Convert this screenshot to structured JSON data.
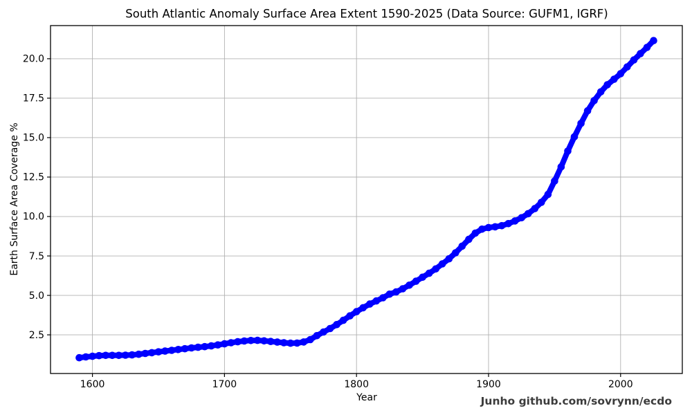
{
  "figure": {
    "title": "South Atlantic Anomaly Surface Area Extent 1590-2025 (Data Source: GUFM1, IGRF)",
    "xlabel": "Year",
    "ylabel": "Earth Surface Area Coverage %",
    "credit": "Junho github.com/sovrynn/ecdo"
  },
  "chart_data": {
    "type": "line",
    "title": "South Atlantic Anomaly Surface Area Extent 1590-2025 (Data Source: GUFM1, IGRF)",
    "xlabel": "Year",
    "ylabel": "Earth Surface Area Coverage %",
    "annotation": "Junho github.com/sovrynn/ecdo",
    "xlim": [
      1568.25,
      2046.75
    ],
    "ylim": [
      0.05,
      22.1
    ],
    "xticks": [
      1600,
      1700,
      1800,
      1900,
      2000
    ],
    "xtick_labels": [
      "1600",
      "1700",
      "1800",
      "1900",
      "2000"
    ],
    "yticks": [
      2.5,
      5.0,
      7.5,
      10.0,
      12.5,
      15.0,
      17.5,
      20.0
    ],
    "ytick_labels": [
      "2.5",
      "5.0",
      "7.5",
      "10.0",
      "12.5",
      "15.0",
      "17.5",
      "20.0"
    ],
    "grid": true,
    "grid_color": "#b0b0b0",
    "line_color": "#0000ff",
    "line_width": 8,
    "marker_radius": 5.3,
    "legend": "none",
    "series": [
      {
        "name": "SAA surface area extent",
        "x": [
          1590,
          1595,
          1600,
          1605,
          1610,
          1615,
          1620,
          1625,
          1630,
          1635,
          1640,
          1645,
          1650,
          1655,
          1660,
          1665,
          1670,
          1675,
          1680,
          1685,
          1690,
          1695,
          1700,
          1705,
          1710,
          1715,
          1720,
          1725,
          1730,
          1735,
          1740,
          1745,
          1750,
          1755,
          1760,
          1765,
          1770,
          1775,
          1780,
          1785,
          1790,
          1795,
          1800,
          1805,
          1810,
          1815,
          1820,
          1825,
          1830,
          1835,
          1840,
          1845,
          1850,
          1855,
          1860,
          1865,
          1870,
          1875,
          1880,
          1885,
          1890,
          1895,
          1900,
          1905,
          1910,
          1915,
          1920,
          1925,
          1930,
          1935,
          1940,
          1945,
          1950,
          1955,
          1960,
          1965,
          1970,
          1975,
          1980,
          1985,
          1990,
          1995,
          2000,
          2005,
          2010,
          2015,
          2020,
          2025
        ],
        "y": [
          1.05,
          1.1,
          1.14,
          1.18,
          1.2,
          1.2,
          1.2,
          1.21,
          1.23,
          1.27,
          1.32,
          1.37,
          1.42,
          1.47,
          1.52,
          1.57,
          1.62,
          1.67,
          1.71,
          1.75,
          1.8,
          1.86,
          1.93,
          2.0,
          2.06,
          2.11,
          2.14,
          2.15,
          2.12,
          2.08,
          2.04,
          2.0,
          1.97,
          1.98,
          2.05,
          2.2,
          2.45,
          2.68,
          2.9,
          3.15,
          3.42,
          3.7,
          3.97,
          4.22,
          4.45,
          4.65,
          4.85,
          5.08,
          5.22,
          5.42,
          5.65,
          5.9,
          6.15,
          6.4,
          6.68,
          7.0,
          7.32,
          7.7,
          8.12,
          8.55,
          8.95,
          9.2,
          9.3,
          9.35,
          9.42,
          9.55,
          9.72,
          9.92,
          10.18,
          10.5,
          10.9,
          11.4,
          12.25,
          13.15,
          14.15,
          15.05,
          15.9,
          16.7,
          17.35,
          17.9,
          18.35,
          18.7,
          19.05,
          19.48,
          19.92,
          20.32,
          20.72,
          21.15
        ]
      }
    ]
  }
}
